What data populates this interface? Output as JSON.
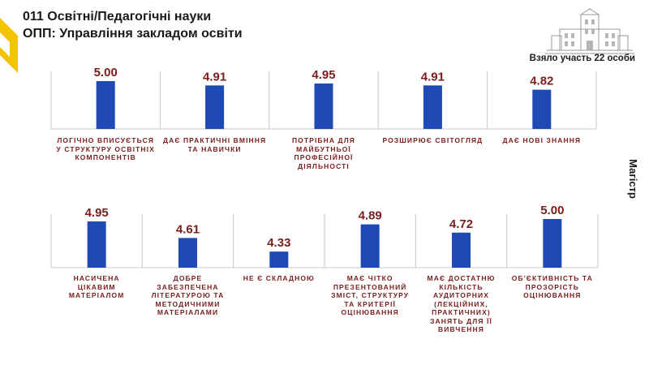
{
  "header": {
    "title_line1": "011 Освітні/Педагогічні науки",
    "title_line2": "ОПП: Управління закладом освіти"
  },
  "participants": "Взяло участь 22 особи",
  "degree_label": "Магістр",
  "colors": {
    "bar": "#1f49b5",
    "value_text": "#7b1d1d",
    "category_text": "#7b1d1d",
    "accent": "#f5c400",
    "grid": "#c8c8c8"
  },
  "chart_data": [
    {
      "type": "bar",
      "categories": [
        "Логічно вписується у структуру освітніх компонентів",
        "Дає практичні вміння та навички",
        "Потрібна для майбутньої професійної діяльності",
        "Розширює світогляд",
        "Дає нові знання"
      ],
      "values": [
        5.0,
        4.91,
        4.95,
        4.91,
        4.82
      ],
      "value_labels": [
        "5.00",
        "4.91",
        "4.95",
        "4.91",
        "4.82"
      ],
      "ylim": [
        4.0,
        5.0
      ],
      "grid": false
    },
    {
      "type": "bar",
      "categories": [
        "Насичена цікавим матеріалом",
        "Добре забезпечена літературою та методичними матеріалами",
        "Не є складною",
        "Має чітко презентований зміст, структуру та критерії оцінювання",
        "Має достатню кількість аудиторних (лекційних, практичних) занять для її вивчення",
        "Об'єктивність та прозорість оцінювання"
      ],
      "values": [
        4.95,
        4.61,
        4.33,
        4.89,
        4.72,
        5.0
      ],
      "value_labels": [
        "4.95",
        "4.61",
        "4.33",
        "4.89",
        "4.72",
        "5.00"
      ],
      "ylim": [
        4.0,
        5.0
      ],
      "grid": false
    }
  ]
}
